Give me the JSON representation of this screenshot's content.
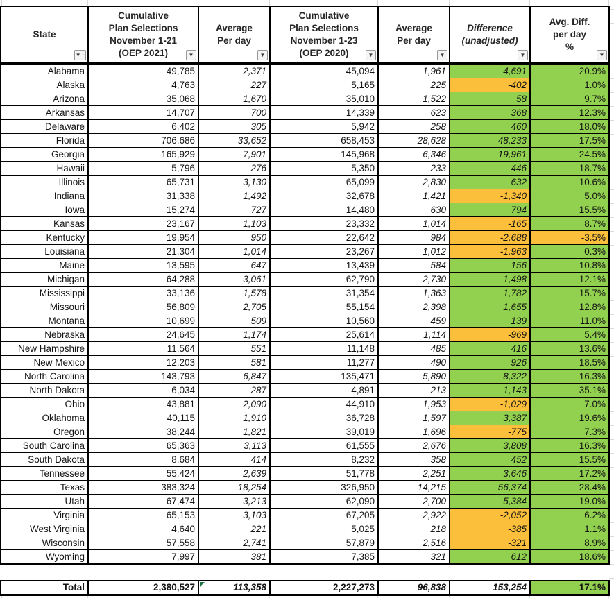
{
  "icons": {
    "filter": "▼",
    "sort_asc": "↑"
  },
  "colors": {
    "positive_bg": "#92D050",
    "negative_bg": "#FBBF3B",
    "warning_triangle": "#1E7145"
  },
  "table": {
    "column_ids": [
      "state",
      "cum2021",
      "avg2021",
      "cum2020",
      "avg2020",
      "diff",
      "pct"
    ],
    "columns": [
      {
        "label": "State"
      },
      {
        "label": "Cumulative\nPlan Selections\nNovember 1-21\n(OEP 2021)"
      },
      {
        "label": "Average\nPer day"
      },
      {
        "label": "Cumulative\nPlan Selections\nNovember 1-23\n(OEP 2020)"
      },
      {
        "label": "Average\nPer day"
      },
      {
        "label": "Difference\n(unadjusted)"
      },
      {
        "label": "Avg. Diff.\nper day\n%"
      }
    ],
    "rows": [
      [
        "Alabama",
        "49,785",
        "2,371",
        "45,094",
        "1,961",
        "4,691",
        "20.9%"
      ],
      [
        "Alaska",
        "4,763",
        "227",
        "5,165",
        "225",
        "-402",
        "1.0%"
      ],
      [
        "Arizona",
        "35,068",
        "1,670",
        "35,010",
        "1,522",
        "58",
        "9.7%"
      ],
      [
        "Arkansas",
        "14,707",
        "700",
        "14,339",
        "623",
        "368",
        "12.3%"
      ],
      [
        "Delaware",
        "6,402",
        "305",
        "5,942",
        "258",
        "460",
        "18.0%"
      ],
      [
        "Florida",
        "706,686",
        "33,652",
        "658,453",
        "28,628",
        "48,233",
        "17.5%"
      ],
      [
        "Georgia",
        "165,929",
        "7,901",
        "145,968",
        "6,346",
        "19,961",
        "24.5%"
      ],
      [
        "Hawaii",
        "5,796",
        "276",
        "5,350",
        "233",
        "446",
        "18.7%"
      ],
      [
        "Illinois",
        "65,731",
        "3,130",
        "65,099",
        "2,830",
        "632",
        "10.6%"
      ],
      [
        "Indiana",
        "31,338",
        "1,492",
        "32,678",
        "1,421",
        "-1,340",
        "5.0%"
      ],
      [
        "Iowa",
        "15,274",
        "727",
        "14,480",
        "630",
        "794",
        "15.5%"
      ],
      [
        "Kansas",
        "23,167",
        "1,103",
        "23,332",
        "1,014",
        "-165",
        "8.7%"
      ],
      [
        "Kentucky",
        "19,954",
        "950",
        "22,642",
        "984",
        "-2,688",
        "-3.5%"
      ],
      [
        "Louisiana",
        "21,304",
        "1,014",
        "23,267",
        "1,012",
        "-1,963",
        "0.3%"
      ],
      [
        "Maine",
        "13,595",
        "647",
        "13,439",
        "584",
        "156",
        "10.8%"
      ],
      [
        "Michigan",
        "64,288",
        "3,061",
        "62,790",
        "2,730",
        "1,498",
        "12.1%"
      ],
      [
        "Mississippi",
        "33,136",
        "1,578",
        "31,354",
        "1,363",
        "1,782",
        "15.7%"
      ],
      [
        "Missouri",
        "56,809",
        "2,705",
        "55,154",
        "2,398",
        "1,655",
        "12.8%"
      ],
      [
        "Montana",
        "10,699",
        "509",
        "10,560",
        "459",
        "139",
        "11.0%"
      ],
      [
        "Nebraska",
        "24,645",
        "1,174",
        "25,614",
        "1,114",
        "-969",
        "5.4%"
      ],
      [
        "New Hampshire",
        "11,564",
        "551",
        "11,148",
        "485",
        "416",
        "13.6%"
      ],
      [
        "New Mexico",
        "12,203",
        "581",
        "11,277",
        "490",
        "926",
        "18.5%"
      ],
      [
        "North Carolina",
        "143,793",
        "6,847",
        "135,471",
        "5,890",
        "8,322",
        "16.3%"
      ],
      [
        "North Dakota",
        "6,034",
        "287",
        "4,891",
        "213",
        "1,143",
        "35.1%"
      ],
      [
        "Ohio",
        "43,881",
        "2,090",
        "44,910",
        "1,953",
        "-1,029",
        "7.0%"
      ],
      [
        "Oklahoma",
        "40,115",
        "1,910",
        "36,728",
        "1,597",
        "3,387",
        "19.6%"
      ],
      [
        "Oregon",
        "38,244",
        "1,821",
        "39,019",
        "1,696",
        "-775",
        "7.3%"
      ],
      [
        "South Carolina",
        "65,363",
        "3,113",
        "61,555",
        "2,676",
        "3,808",
        "16.3%"
      ],
      [
        "South Dakota",
        "8,684",
        "414",
        "8,232",
        "358",
        "452",
        "15.5%"
      ],
      [
        "Tennessee",
        "55,424",
        "2,639",
        "51,778",
        "2,251",
        "3,646",
        "17.2%"
      ],
      [
        "Texas",
        "383,324",
        "18,254",
        "326,950",
        "14,215",
        "56,374",
        "28.4%"
      ],
      [
        "Utah",
        "67,474",
        "3,213",
        "62,090",
        "2,700",
        "5,384",
        "19.0%"
      ],
      [
        "Virginia",
        "65,153",
        "3,103",
        "67,205",
        "2,922",
        "-2,052",
        "6.2%"
      ],
      [
        "West Virginia",
        "4,640",
        "221",
        "5,025",
        "218",
        "-385",
        "1.1%"
      ],
      [
        "Wisconsin",
        "57,558",
        "2,741",
        "57,879",
        "2,516",
        "-321",
        "8.9%"
      ],
      [
        "Wyoming",
        "7,997",
        "381",
        "7,385",
        "321",
        "612",
        "18.6%"
      ]
    ],
    "total": [
      "Total",
      "2,380,527",
      "113,358",
      "2,227,273",
      "96,838",
      "153,254",
      "17.1%"
    ]
  }
}
